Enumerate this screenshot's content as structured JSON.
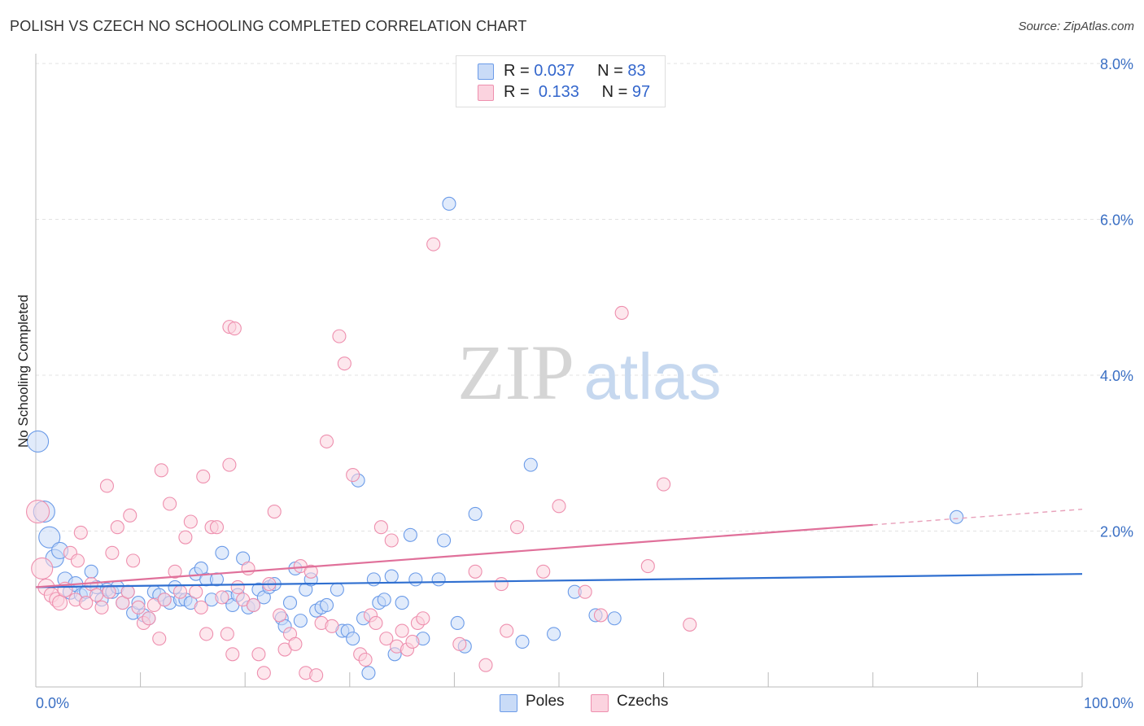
{
  "title": "POLISH VS CZECH NO SCHOOLING COMPLETED CORRELATION CHART",
  "source": "Source: ZipAtlas.com",
  "watermark": {
    "zip": "ZIP",
    "atlas": "atlas"
  },
  "legend": {
    "rows": [
      {
        "r_label": "R =",
        "r_value": "0.037",
        "n_label": "N =",
        "n_value": "83",
        "color": "#6b9be8",
        "fill": "#c9dbf7"
      },
      {
        "r_label": "R =",
        "r_value": "0.133",
        "n_label": "N =",
        "n_value": "97",
        "color": "#ee8fae",
        "fill": "#fbd3df"
      }
    ]
  },
  "bottom_legend": [
    {
      "label": "Poles",
      "color": "#6b9be8",
      "fill": "#c9dbf7"
    },
    {
      "label": "Czechs",
      "color": "#ee8fae",
      "fill": "#fbd3df"
    }
  ],
  "chart_data": {
    "type": "scatter",
    "title": "POLISH VS CZECH NO SCHOOLING COMPLETED CORRELATION CHART",
    "ylabel": "No Schooling Completed",
    "xlabel": "",
    "xlim": [
      0,
      100
    ],
    "ylim": [
      0,
      8
    ],
    "x_tick_labels": [
      "0.0%",
      "100.0%"
    ],
    "y_tick_labels": [
      "2.0%",
      "4.0%",
      "6.0%",
      "8.0%"
    ],
    "y_ticks": [
      2,
      4,
      6,
      8
    ],
    "grid": true,
    "legend_position": "top-center",
    "series": [
      {
        "name": "Poles",
        "color": "#6b9be8",
        "fill": "#c9dbf7",
        "trend": {
          "x0": 0,
          "y0": 1.28,
          "x1": 100,
          "y1": 1.45
        },
        "points": [
          [
            0.2,
            3.15,
            13
          ],
          [
            0.8,
            2.25,
            13
          ],
          [
            1.3,
            1.92,
            13
          ],
          [
            1.8,
            1.65,
            11
          ],
          [
            2.3,
            1.75,
            10
          ],
          [
            2.8,
            1.38,
            9
          ],
          [
            3.3,
            1.22,
            9
          ],
          [
            3.8,
            1.32,
            9
          ],
          [
            4.3,
            1.18,
            8
          ],
          [
            4.8,
            1.22,
            8
          ],
          [
            5.3,
            1.48,
            8
          ],
          [
            5.8,
            1.28,
            8
          ],
          [
            6.3,
            1.12,
            8
          ],
          [
            6.8,
            1.25,
            8
          ],
          [
            7.3,
            1.22,
            8
          ],
          [
            7.8,
            1.28,
            8
          ],
          [
            8.3,
            1.08,
            8
          ],
          [
            8.8,
            1.22,
            8
          ],
          [
            9.3,
            0.95,
            8
          ],
          [
            9.8,
            1.08,
            8
          ],
          [
            10.3,
            0.92,
            8
          ],
          [
            10.8,
            0.88,
            8
          ],
          [
            11.3,
            1.22,
            8
          ],
          [
            11.8,
            1.18,
            8
          ],
          [
            12.3,
            1.12,
            8
          ],
          [
            12.8,
            1.08,
            8
          ],
          [
            13.3,
            1.28,
            8
          ],
          [
            13.8,
            1.12,
            8
          ],
          [
            14.3,
            1.12,
            8
          ],
          [
            14.8,
            1.08,
            8
          ],
          [
            15.3,
            1.45,
            8
          ],
          [
            15.8,
            1.52,
            8
          ],
          [
            16.3,
            1.38,
            8
          ],
          [
            16.8,
            1.12,
            8
          ],
          [
            17.3,
            1.38,
            8
          ],
          [
            17.8,
            1.72,
            8
          ],
          [
            18.3,
            1.15,
            8
          ],
          [
            18.8,
            1.05,
            8
          ],
          [
            19.3,
            1.18,
            8
          ],
          [
            19.8,
            1.65,
            8
          ],
          [
            20.3,
            1.02,
            8
          ],
          [
            20.8,
            1.05,
            8
          ],
          [
            21.3,
            1.25,
            8
          ],
          [
            21.8,
            1.15,
            8
          ],
          [
            22.3,
            1.28,
            8
          ],
          [
            22.8,
            1.32,
            8
          ],
          [
            23.5,
            0.88,
            8
          ],
          [
            23.8,
            0.78,
            8
          ],
          [
            24.3,
            1.08,
            8
          ],
          [
            24.8,
            1.52,
            8
          ],
          [
            25.3,
            0.85,
            8
          ],
          [
            25.8,
            1.25,
            8
          ],
          [
            26.3,
            1.38,
            8
          ],
          [
            26.8,
            0.98,
            8
          ],
          [
            27.3,
            1.02,
            8
          ],
          [
            27.8,
            1.05,
            8
          ],
          [
            28.8,
            1.25,
            8
          ],
          [
            29.3,
            0.72,
            8
          ],
          [
            29.8,
            0.72,
            8
          ],
          [
            30.3,
            0.62,
            8
          ],
          [
            30.8,
            2.65,
            8
          ],
          [
            31.3,
            0.88,
            8
          ],
          [
            31.8,
            0.18,
            8
          ],
          [
            32.3,
            1.38,
            8
          ],
          [
            32.8,
            1.08,
            8
          ],
          [
            33.3,
            1.12,
            8
          ],
          [
            34.0,
            1.42,
            8
          ],
          [
            34.3,
            0.42,
            8
          ],
          [
            35.0,
            1.08,
            8
          ],
          [
            35.8,
            1.95,
            8
          ],
          [
            36.3,
            1.38,
            8
          ],
          [
            37.0,
            0.62,
            8
          ],
          [
            38.5,
            1.38,
            8
          ],
          [
            39.0,
            1.88,
            8
          ],
          [
            40.3,
            0.82,
            8
          ],
          [
            41.0,
            0.52,
            8
          ],
          [
            42.0,
            2.22,
            8
          ],
          [
            46.5,
            0.58,
            8
          ],
          [
            47.3,
            2.85,
            8
          ],
          [
            49.5,
            0.68,
            8
          ],
          [
            51.5,
            1.22,
            8
          ],
          [
            53.5,
            0.92,
            8
          ],
          [
            55.3,
            0.88,
            8
          ],
          [
            88.0,
            2.18,
            8
          ],
          [
            39.5,
            6.2,
            8
          ]
        ]
      },
      {
        "name": "Czechs",
        "color": "#ee8fae",
        "fill": "#fbd3df",
        "trend": {
          "x0": 0,
          "y0": 1.28,
          "x1": 80,
          "y1": 2.08,
          "dash_to_x": 100,
          "dash_to_y": 2.28
        },
        "points": [
          [
            0.2,
            2.25,
            14
          ],
          [
            0.6,
            1.52,
            13
          ],
          [
            1.0,
            1.28,
            10
          ],
          [
            1.5,
            1.18,
            9
          ],
          [
            2.0,
            1.12,
            9
          ],
          [
            2.3,
            1.08,
            9
          ],
          [
            2.8,
            1.25,
            9
          ],
          [
            3.3,
            1.72,
            8
          ],
          [
            3.8,
            1.12,
            8
          ],
          [
            4.0,
            1.62,
            8
          ],
          [
            4.3,
            1.98,
            8
          ],
          [
            4.8,
            1.08,
            8
          ],
          [
            5.3,
            1.32,
            8
          ],
          [
            5.8,
            1.18,
            8
          ],
          [
            6.3,
            1.02,
            8
          ],
          [
            6.8,
            2.58,
            8
          ],
          [
            7.0,
            1.22,
            8
          ],
          [
            7.3,
            1.72,
            8
          ],
          [
            7.8,
            2.05,
            8
          ],
          [
            8.3,
            1.08,
            8
          ],
          [
            8.8,
            1.22,
            8
          ],
          [
            9.3,
            1.62,
            8
          ],
          [
            9.8,
            1.02,
            8
          ],
          [
            10.3,
            0.82,
            8
          ],
          [
            10.8,
            0.88,
            8
          ],
          [
            11.3,
            1.05,
            8
          ],
          [
            11.8,
            0.62,
            8
          ],
          [
            12.3,
            1.12,
            8
          ],
          [
            12.8,
            2.35,
            8
          ],
          [
            13.3,
            1.48,
            8
          ],
          [
            13.8,
            1.22,
            8
          ],
          [
            14.3,
            1.92,
            8
          ],
          [
            14.8,
            2.12,
            8
          ],
          [
            15.3,
            1.22,
            8
          ],
          [
            15.8,
            1.02,
            8
          ],
          [
            16.3,
            0.68,
            8
          ],
          [
            16.8,
            2.05,
            8
          ],
          [
            17.3,
            2.05,
            8
          ],
          [
            17.8,
            1.15,
            8
          ],
          [
            18.3,
            0.68,
            8
          ],
          [
            18.8,
            0.42,
            8
          ],
          [
            19.3,
            1.28,
            8
          ],
          [
            19.8,
            1.12,
            8
          ],
          [
            20.3,
            1.52,
            8
          ],
          [
            20.8,
            1.05,
            8
          ],
          [
            21.3,
            0.42,
            8
          ],
          [
            21.8,
            0.18,
            8
          ],
          [
            22.3,
            1.32,
            8
          ],
          [
            22.8,
            2.25,
            8
          ],
          [
            23.3,
            0.92,
            8
          ],
          [
            23.8,
            0.48,
            8
          ],
          [
            24.3,
            0.68,
            8
          ],
          [
            24.8,
            0.55,
            8
          ],
          [
            25.3,
            1.55,
            8
          ],
          [
            25.8,
            0.18,
            8
          ],
          [
            26.3,
            1.48,
            8
          ],
          [
            26.8,
            0.15,
            8
          ],
          [
            27.3,
            0.82,
            8
          ],
          [
            27.8,
            3.15,
            8
          ],
          [
            28.3,
            0.78,
            8
          ],
          [
            29.0,
            4.5,
            8
          ],
          [
            29.5,
            4.15,
            8
          ],
          [
            30.3,
            2.72,
            8
          ],
          [
            31.0,
            0.42,
            8
          ],
          [
            31.5,
            0.35,
            8
          ],
          [
            32.0,
            0.92,
            8
          ],
          [
            32.5,
            0.82,
            8
          ],
          [
            33.0,
            2.05,
            8
          ],
          [
            33.5,
            0.62,
            8
          ],
          [
            34.0,
            1.88,
            8
          ],
          [
            34.5,
            0.52,
            8
          ],
          [
            35.0,
            0.72,
            8
          ],
          [
            35.5,
            0.48,
            8
          ],
          [
            36.0,
            0.58,
            8
          ],
          [
            36.5,
            0.82,
            8
          ],
          [
            37.0,
            0.88,
            8
          ],
          [
            38.0,
            5.68,
            8
          ],
          [
            40.5,
            0.55,
            8
          ],
          [
            42.0,
            1.48,
            8
          ],
          [
            43.0,
            0.28,
            8
          ],
          [
            44.5,
            1.32,
            8
          ],
          [
            45.0,
            0.72,
            8
          ],
          [
            46.0,
            2.05,
            8
          ],
          [
            48.5,
            1.48,
            8
          ],
          [
            50.0,
            2.32,
            8
          ],
          [
            52.5,
            1.22,
            8
          ],
          [
            54.0,
            0.92,
            8
          ],
          [
            56.0,
            4.8,
            8
          ],
          [
            58.5,
            1.55,
            8
          ],
          [
            60.0,
            2.6,
            8
          ],
          [
            62.5,
            0.8,
            8
          ],
          [
            18.5,
            4.62,
            8
          ],
          [
            19.0,
            4.6,
            8
          ],
          [
            12.0,
            2.78,
            8
          ],
          [
            18.5,
            2.85,
            8
          ],
          [
            9.0,
            2.2,
            8
          ],
          [
            16.0,
            2.7,
            8
          ]
        ]
      }
    ]
  }
}
